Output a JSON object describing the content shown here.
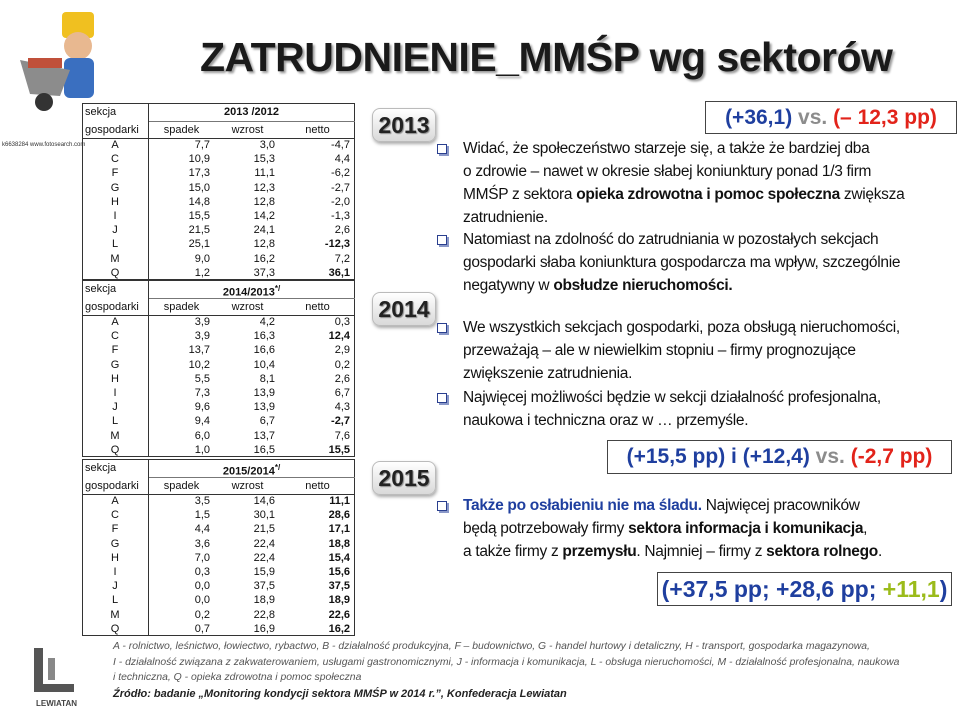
{
  "title": "ZATRUDNIENIE_MMŚP wg sektorów",
  "watermark": "k6638284 www.fotosearch.com",
  "logo": "LEWIATAN",
  "tables": [
    {
      "section_header": [
        "sekcja",
        "gospodarki"
      ],
      "period": "2013 /2012",
      "columns": [
        "spadek",
        "wzrost",
        "netto"
      ],
      "rows": [
        [
          "A",
          "7,7",
          "3,0",
          "-4,7"
        ],
        [
          "C",
          "10,9",
          "15,3",
          "4,4"
        ],
        [
          "F",
          "17,3",
          "11,1",
          "-6,2"
        ],
        [
          "G",
          "15,0",
          "12,3",
          "-2,7"
        ],
        [
          "H",
          "14,8",
          "12,8",
          "-2,0"
        ],
        [
          "I",
          "15,5",
          "14,2",
          "-1,3"
        ],
        [
          "J",
          "21,5",
          "24,1",
          "2,6"
        ],
        [
          "L",
          "25,1",
          "12,8",
          "-12,3"
        ],
        [
          "M",
          "9,0",
          "16,2",
          "7,2"
        ],
        [
          "Q",
          "1,2",
          "37,3",
          "36,1"
        ]
      ],
      "bold_rows": [
        7,
        9
      ]
    },
    {
      "section_header": [
        "sekcja",
        "gospodarki"
      ],
      "period": "2014/2013",
      "note": "*/",
      "columns": [
        "spadek",
        "wzrost",
        "netto"
      ],
      "rows": [
        [
          "A",
          "3,9",
          "4,2",
          "0,3"
        ],
        [
          "C",
          "3,9",
          "16,3",
          "12,4"
        ],
        [
          "F",
          "13,7",
          "16,6",
          "2,9"
        ],
        [
          "G",
          "10,2",
          "10,4",
          "0,2"
        ],
        [
          "H",
          "5,5",
          "8,1",
          "2,6"
        ],
        [
          "I",
          "7,3",
          "13,9",
          "6,7"
        ],
        [
          "J",
          "9,6",
          "13,9",
          "4,3"
        ],
        [
          "L",
          "9,4",
          "6,7",
          "-2,7"
        ],
        [
          "M",
          "6,0",
          "13,7",
          "7,6"
        ],
        [
          "Q",
          "1,0",
          "16,5",
          "15,5"
        ]
      ],
      "bold_rows": [
        1,
        7,
        9
      ]
    },
    {
      "section_header": [
        "sekcja",
        "gospodarki"
      ],
      "period": "2015/2014",
      "note": "*/",
      "columns": [
        "spadek",
        "wzrost",
        "netto"
      ],
      "rows": [
        [
          "A",
          "3,5",
          "14,6",
          "11,1"
        ],
        [
          "C",
          "1,5",
          "30,1",
          "28,6"
        ],
        [
          "F",
          "4,4",
          "21,5",
          "17,1"
        ],
        [
          "G",
          "3,6",
          "22,4",
          "18,8"
        ],
        [
          "H",
          "7,0",
          "22,4",
          "15,4"
        ],
        [
          "I",
          "0,3",
          "15,9",
          "15,6"
        ],
        [
          "J",
          "0,0",
          "37,5",
          "37,5"
        ],
        [
          "L",
          "0,0",
          "18,9",
          "18,9"
        ],
        [
          "M",
          "0,2",
          "22,8",
          "22,6"
        ],
        [
          "Q",
          "0,7",
          "16,9",
          "16,2"
        ]
      ],
      "bold_rows": [
        0,
        1,
        2,
        3,
        4,
        5,
        6,
        7,
        8,
        9
      ]
    }
  ],
  "years": [
    {
      "year": "2013",
      "highlight": [
        {
          "text": "(+36,1)",
          "color": "#1f3f9f"
        },
        {
          "text": " vs. ",
          "color": "#8c8c8c"
        },
        {
          "text": "(– 12,3 pp)",
          "color": "#e2231a"
        }
      ],
      "bullets": [
        [
          [
            {
              "text": "Widać, że społeczeństwo starzeje się, a także że bardziej dba"
            }
          ],
          [
            {
              "text": "o zdrowie – nawet w okresie słabej koniunktury ponad 1/3 firm"
            }
          ],
          [
            {
              "text": "MMŚP z sektora "
            },
            {
              "text": "opieka zdrowotna i pomoc społeczna",
              "bold": true
            },
            {
              "text": " zwiększa"
            }
          ],
          [
            {
              "text": "zatrudnienie."
            }
          ]
        ],
        [
          [
            {
              "text": "Natomiast na zdolność do zatrudniania w pozostałych sekcjach"
            }
          ],
          [
            {
              "text": "gospodarki słaba koniunktura gospodarcza ma wpływ, szczególnie"
            }
          ],
          [
            {
              "text": "negatywny w "
            },
            {
              "text": "obsłudze nieruchomości.",
              "bold": true
            }
          ]
        ]
      ]
    },
    {
      "year": "2014",
      "highlight": [
        {
          "text": "(+15,5 pp) i (+12,4)",
          "color": "#1f3f9f"
        },
        {
          "text": " vs. ",
          "color": "#8c8c8c"
        },
        {
          "text": "(-2,7 pp)",
          "color": "#e2231a"
        }
      ],
      "bullets": [
        [
          [
            {
              "text": "We wszystkich sekcjach gospodarki, poza obsługą nieruchomości,"
            }
          ],
          [
            {
              "text": "przeważają – ale w niewielkim stopniu – firmy prognozujące"
            }
          ],
          [
            {
              "text": "zwiększenie zatrudnienia."
            }
          ]
        ],
        [
          [
            {
              "text": "Najwięcej możliwości będzie w sekcji działalność profesjonalna,"
            }
          ],
          [
            {
              "text": "naukowa i techniczna oraz w … przemyśle."
            }
          ]
        ]
      ]
    },
    {
      "year": "2015",
      "highlight": [
        {
          "text": "(+37,5 pp; +28,6 pp; ",
          "color": "#1f3f9f"
        },
        {
          "text": "+11,1",
          "color": "#9bbb1a"
        },
        {
          "text": ")",
          "color": "#1f3f9f"
        }
      ],
      "bullets": [
        [
          [
            {
              "text": "Także po osłabieniu nie ma śladu.",
              "bold": true,
              "color": "#1f3f9f"
            },
            {
              "text": " Najwięcej pracowników"
            }
          ],
          [
            {
              "text": "będą potrzebowały firmy "
            },
            {
              "text": "sektora informacja i komunikacja",
              "bold": true
            },
            {
              "text": ","
            }
          ],
          [
            {
              "text": "a także firmy z "
            },
            {
              "text": "przemysłu",
              "bold": true
            },
            {
              "text": ". Najmniej – firmy z "
            },
            {
              "text": "sektora rolnego",
              "bold": true
            },
            {
              "text": "."
            }
          ]
        ]
      ]
    }
  ],
  "footnote": [
    "A - rolnictwo, leśnictwo, łowiectwo, rybactwo, B - działalność produkcyjna, F – budownictwo, G - handel hurtowy i detaliczny, H - transport, gospodarka magazynowa,",
    "I - działalność związana z zakwaterowaniem, usługami gastronomicznymi, J - informacja i komunikacja, L - obsługa nieruchomości, M - działalność profesjonalna, naukowa",
    "i techniczna, Q - opieka zdrowotna i pomoc społeczna"
  ],
  "source": "Źródło: badanie „Monitoring kondycji sektora MMŚP w 2014 r.”, Konfederacja Lewiatan"
}
